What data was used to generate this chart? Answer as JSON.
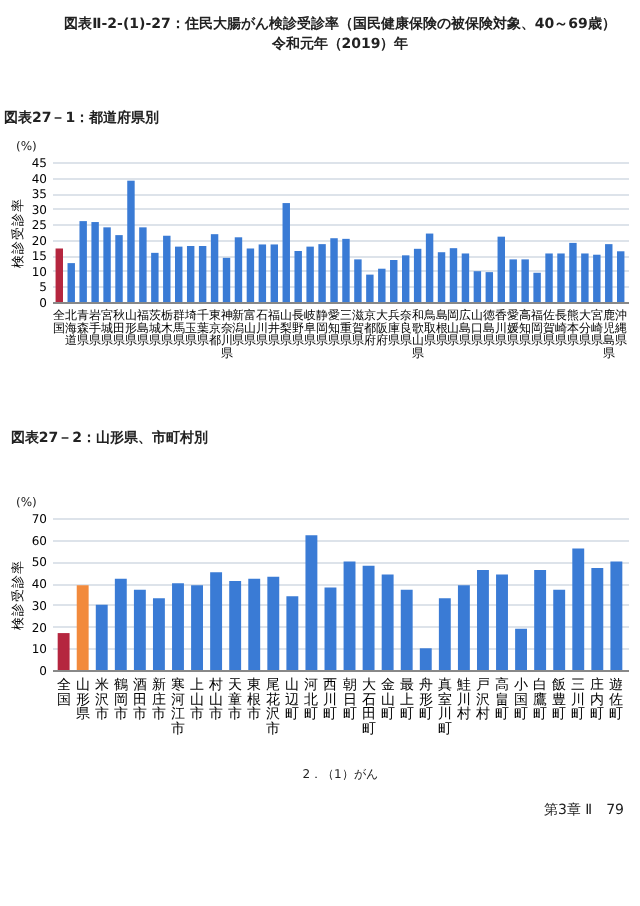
{
  "chart_data": [
    {
      "type": "bar",
      "title": "図表Ⅱ-2-(1)-27：住民大腸がん検診受診率（国民健康保険の被保険対象、40～69歳）",
      "subtitle": "令和元年（2019）年",
      "ylabel": "検診受診率",
      "annotations": [
        "図表27－1：都道府県別",
        "(%)"
      ],
      "categories": [
        "全国",
        "北海道",
        "青森県",
        "岩手県",
        "宮城県",
        "秋田県",
        "山形県",
        "福島県",
        "茨城県",
        "栃木県",
        "群馬県",
        "埼玉県",
        "千葉県",
        "東京都",
        "神奈川県",
        "新潟県",
        "富山県",
        "石川県",
        "福井県",
        "山梨県",
        "長野県",
        "岐阜県",
        "静岡県",
        "愛知県",
        "三重県",
        "滋賀県",
        "京都府",
        "大阪府",
        "兵庫県",
        "奈良県",
        "和歌山県",
        "鳥取県",
        "島根県",
        "岡山県",
        "広島県",
        "山口県",
        "徳島県",
        "香川県",
        "愛媛県",
        "高知県",
        "福岡県",
        "佐賀県",
        "長崎県",
        "熊本県",
        "大分県",
        "宮崎県",
        "鹿児島県",
        "沖縄県"
      ],
      "values": [
        17.2,
        12.5,
        26,
        25.7,
        24,
        21.5,
        39,
        24,
        15.8,
        21.3,
        17.8,
        18,
        18,
        21.8,
        14.2,
        20.8,
        17.2,
        18.5,
        18.5,
        31.8,
        16.4,
        17.8,
        18.6,
        20.5,
        20.3,
        13.7,
        8.8,
        10.7,
        13.5,
        15,
        17.1,
        22,
        16,
        17.3,
        15.6,
        9.9,
        9.6,
        21,
        13.7,
        13.7,
        9.4,
        15.6,
        15.6,
        19,
        15.6,
        15.2,
        18.6,
        16.3
      ],
      "colors": [
        "#b5263f",
        "#3a7bd5",
        "#3a7bd5",
        "#3a7bd5",
        "#3a7bd5",
        "#3a7bd5",
        "#3a7bd5",
        "#3a7bd5",
        "#3a7bd5",
        "#3a7bd5",
        "#3a7bd5",
        "#3a7bd5",
        "#3a7bd5",
        "#3a7bd5",
        "#3a7bd5",
        "#3a7bd5",
        "#3a7bd5",
        "#3a7bd5",
        "#3a7bd5",
        "#3a7bd5",
        "#3a7bd5",
        "#3a7bd5",
        "#3a7bd5",
        "#3a7bd5",
        "#3a7bd5",
        "#3a7bd5",
        "#3a7bd5",
        "#3a7bd5",
        "#3a7bd5",
        "#3a7bd5",
        "#3a7bd5",
        "#3a7bd5",
        "#3a7bd5",
        "#3a7bd5",
        "#3a7bd5",
        "#3a7bd5",
        "#3a7bd5",
        "#3a7bd5",
        "#3a7bd5",
        "#3a7bd5",
        "#3a7bd5",
        "#3a7bd5",
        "#3a7bd5",
        "#3a7bd5",
        "#3a7bd5",
        "#3a7bd5",
        "#3a7bd5",
        "#3a7bd5"
      ],
      "ylim": [
        0,
        45
      ],
      "yticks": [
        0,
        5,
        10,
        15,
        20,
        25,
        30,
        35,
        40,
        45
      ],
      "grid": "y"
    },
    {
      "type": "bar",
      "title": "図表27－2：山形県、市町村別",
      "ylabel": "検診受診率",
      "annotations": [
        "(%)",
        "2．（1）がん",
        "第3章 Ⅱ　79"
      ],
      "categories": [
        "全国",
        "山形県",
        "米沢市",
        "鶴岡市",
        "酒田市",
        "新庄市",
        "寒河江市",
        "上山市",
        "村山市",
        "天童市",
        "東根市",
        "尾花沢市",
        "山辺町",
        "河北町",
        "西川町",
        "朝日町",
        "大石田町",
        "金山町",
        "最上町",
        "舟形町",
        "真室川町",
        "鮭川村",
        "戸沢村",
        "高畠町",
        "小国町",
        "白鷹町",
        "飯豊町",
        "三川町",
        "庄内町",
        "遊佐町"
      ],
      "values": [
        17,
        39,
        30,
        42,
        37,
        33,
        40,
        39,
        45,
        41,
        42,
        43,
        34,
        62,
        38,
        50,
        48,
        44,
        37,
        10,
        33,
        39,
        46,
        44,
        19,
        46,
        37,
        56,
        47,
        50
      ],
      "colors": [
        "#b5263f",
        "#f28a3c",
        "#3a7bd5",
        "#3a7bd5",
        "#3a7bd5",
        "#3a7bd5",
        "#3a7bd5",
        "#3a7bd5",
        "#3a7bd5",
        "#3a7bd5",
        "#3a7bd5",
        "#3a7bd5",
        "#3a7bd5",
        "#3a7bd5",
        "#3a7bd5",
        "#3a7bd5",
        "#3a7bd5",
        "#3a7bd5",
        "#3a7bd5",
        "#3a7bd5",
        "#3a7bd5",
        "#3a7bd5",
        "#3a7bd5",
        "#3a7bd5",
        "#3a7bd5",
        "#3a7bd5",
        "#3a7bd5",
        "#3a7bd5",
        "#3a7bd5",
        "#3a7bd5"
      ],
      "ylim": [
        0,
        70
      ],
      "yticks": [
        0,
        10,
        20,
        30,
        40,
        50,
        60,
        70
      ],
      "grid": "y"
    }
  ]
}
